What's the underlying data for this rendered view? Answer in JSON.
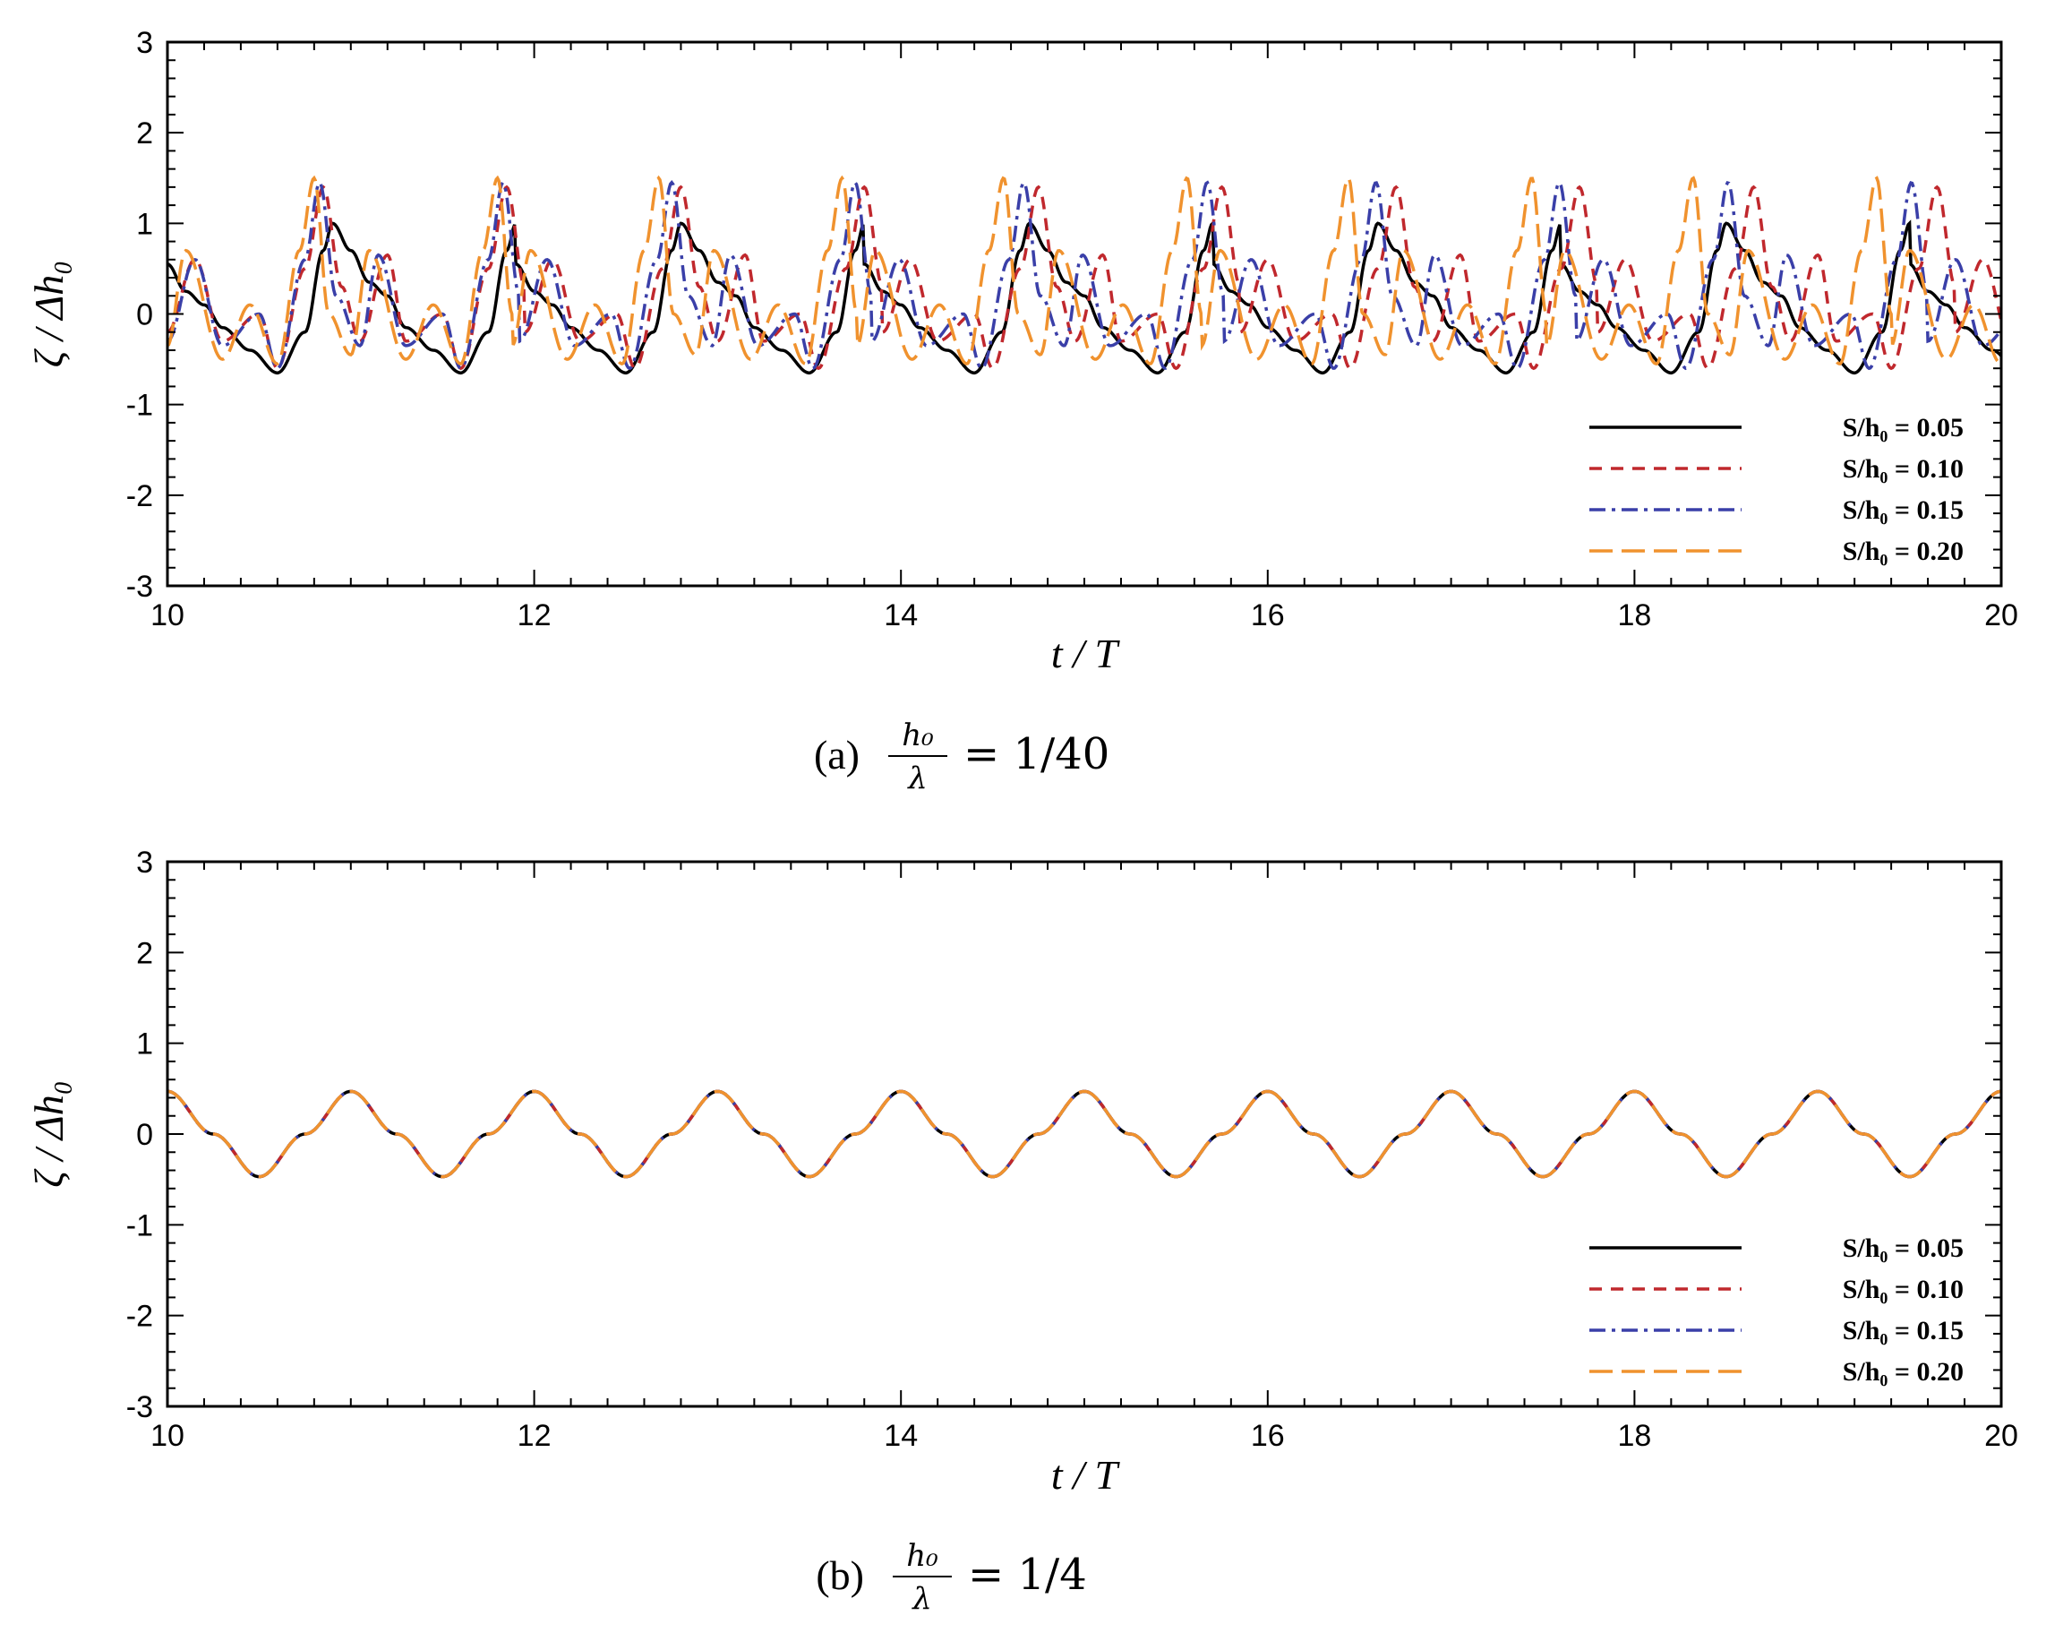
{
  "chart_data": [
    {
      "type": "line",
      "panel": "a",
      "caption_label": "(a)",
      "caption_math": {
        "numerator": "h₀",
        "denominator": "λ",
        "rhs": "= 1/40"
      },
      "xlabel": "t / T",
      "ylabel": "ζ / Δh₀",
      "xlim": [
        10,
        20
      ],
      "ylim": [
        -3,
        3
      ],
      "xticks": [
        10,
        12,
        14,
        16,
        18,
        20
      ],
      "yticks": [
        -3,
        -2,
        -1,
        0,
        1,
        2,
        3
      ],
      "grid": false,
      "legend_position": "bottom-right",
      "series": [
        {
          "name": "S/h₀ = 0.05",
          "color": "#000000",
          "dash": "solid",
          "x": [
            10.0,
            10.1,
            10.2,
            10.3,
            10.45,
            10.6,
            10.75,
            10.85,
            10.9,
            11.0,
            11.1,
            11.2,
            11.3,
            11.45,
            11.6,
            11.75,
            11.85,
            11.9
          ],
          "y": [
            0.55,
            0.25,
            0.1,
            -0.15,
            -0.4,
            -0.65,
            -0.2,
            0.7,
            1.0,
            0.7,
            0.35,
            0.2,
            -0.15,
            -0.4,
            -0.65,
            -0.2,
            0.7,
            1.0
          ]
        },
        {
          "name": "S/h₀ = 0.10",
          "color": "#c0282d",
          "dash": "short",
          "x": [
            10.0,
            10.15,
            10.3,
            10.5,
            10.6,
            10.75,
            10.85,
            10.95,
            11.05,
            11.2,
            11.3,
            11.5,
            11.6,
            11.75,
            11.85,
            11.95
          ],
          "y": [
            -0.2,
            0.6,
            -0.3,
            0.0,
            -0.6,
            0.5,
            1.4,
            0.3,
            -0.3,
            0.65,
            -0.3,
            0.0,
            -0.6,
            0.5,
            1.4,
            0.3
          ]
        },
        {
          "name": "S/h₀ = 0.15",
          "color": "#3a3fa8",
          "dash": "dashdot",
          "x": [
            10.0,
            10.15,
            10.3,
            10.5,
            10.6,
            10.75,
            10.83,
            10.92,
            11.05,
            11.15,
            11.3,
            11.5,
            11.6,
            11.75,
            11.83,
            11.92
          ],
          "y": [
            -0.3,
            0.6,
            -0.35,
            0.0,
            -0.6,
            0.6,
            1.45,
            0.2,
            -0.35,
            0.65,
            -0.35,
            0.0,
            -0.6,
            0.6,
            1.45,
            0.2
          ]
        },
        {
          "name": "S/h₀ = 0.20",
          "color": "#f0922e",
          "dash": "long",
          "x": [
            10.0,
            10.1,
            10.3,
            10.45,
            10.6,
            10.72,
            10.8,
            10.88,
            11.0,
            11.1,
            11.3,
            11.45,
            11.6,
            11.72,
            11.8,
            11.88
          ],
          "y": [
            -0.35,
            0.7,
            -0.5,
            0.1,
            -0.55,
            0.7,
            1.5,
            0.0,
            -0.45,
            0.7,
            -0.5,
            0.1,
            -0.55,
            0.7,
            1.5,
            0.0
          ]
        }
      ]
    },
    {
      "type": "line",
      "panel": "b",
      "caption_label": "(b)",
      "caption_math": {
        "numerator": "h₀",
        "denominator": "λ",
        "rhs": "= 1/4"
      },
      "xlabel": "t / T",
      "ylabel": "ζ / Δh₀",
      "xlim": [
        10,
        20
      ],
      "ylim": [
        -3,
        3
      ],
      "xticks": [
        10,
        12,
        14,
        16,
        18,
        20
      ],
      "yticks": [
        -3,
        -2,
        -1,
        0,
        1,
        2,
        3
      ],
      "grid": false,
      "legend_position": "bottom-right",
      "series": [
        {
          "name": "S/h₀ = 0.05",
          "color": "#000000",
          "dash": "solid",
          "x": [
            10.0,
            10.25,
            10.5,
            10.75,
            11.0,
            11.25,
            11.5,
            11.75,
            12.0
          ],
          "y": [
            0.47,
            0.0,
            -0.47,
            0.0,
            0.47,
            0.0,
            -0.47,
            0.0,
            0.47
          ]
        },
        {
          "name": "S/h₀ = 0.10",
          "color": "#c0282d",
          "dash": "short",
          "x": [
            10.0,
            10.25,
            10.5,
            10.75,
            11.0,
            11.25,
            11.5,
            11.75,
            12.0
          ],
          "y": [
            0.47,
            0.0,
            -0.47,
            0.0,
            0.47,
            0.0,
            -0.47,
            0.0,
            0.47
          ]
        },
        {
          "name": "S/h₀ = 0.15",
          "color": "#3a3fa8",
          "dash": "dashdot",
          "x": [
            10.0,
            10.25,
            10.5,
            10.75,
            11.0,
            11.25,
            11.5,
            11.75,
            12.0
          ],
          "y": [
            0.47,
            0.0,
            -0.47,
            0.0,
            0.47,
            0.0,
            -0.47,
            0.0,
            0.47
          ]
        },
        {
          "name": "S/h₀ = 0.20",
          "color": "#f0922e",
          "dash": "long",
          "x": [
            10.0,
            10.25,
            10.5,
            10.75,
            11.0,
            11.25,
            11.5,
            11.75,
            12.0
          ],
          "y": [
            0.47,
            0.0,
            -0.47,
            0.0,
            0.47,
            0.0,
            -0.47,
            0.0,
            0.47
          ]
        }
      ]
    }
  ]
}
